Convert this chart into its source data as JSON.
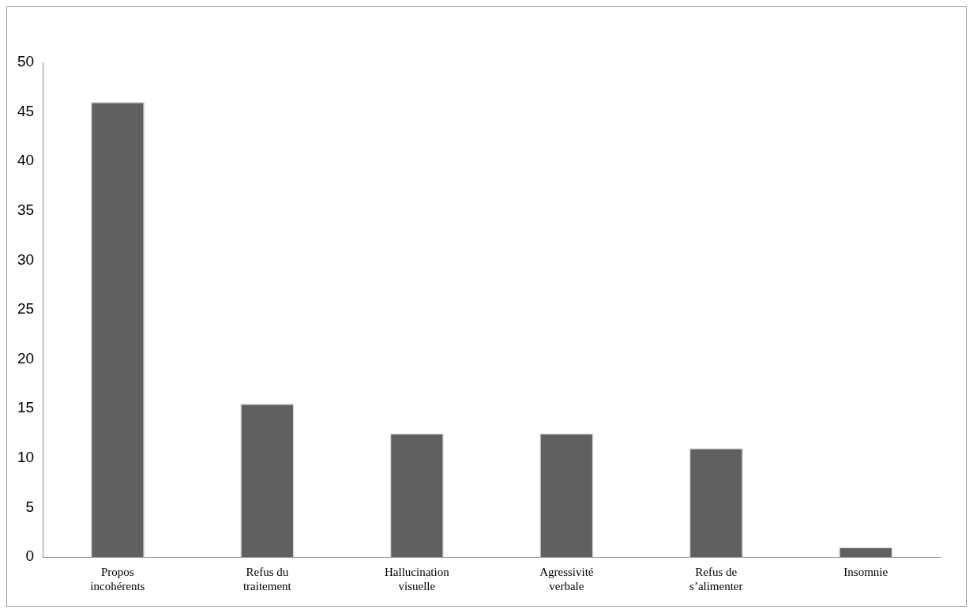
{
  "chart_data": {
    "type": "bar",
    "categories": [
      "Propos incohérents",
      "Refus du traitement",
      "Hallucination visuelle",
      "Agressivité verbale",
      "Refus de s’alimenter",
      "Insomnie"
    ],
    "values": [
      46,
      15.5,
      12.5,
      12.5,
      11,
      1
    ],
    "color": "#606060",
    "ylim": [
      0,
      50
    ],
    "yticks": [
      0,
      5,
      10,
      15,
      20,
      25,
      30,
      35,
      40,
      45,
      50
    ],
    "grid": false,
    "legend": false
  }
}
